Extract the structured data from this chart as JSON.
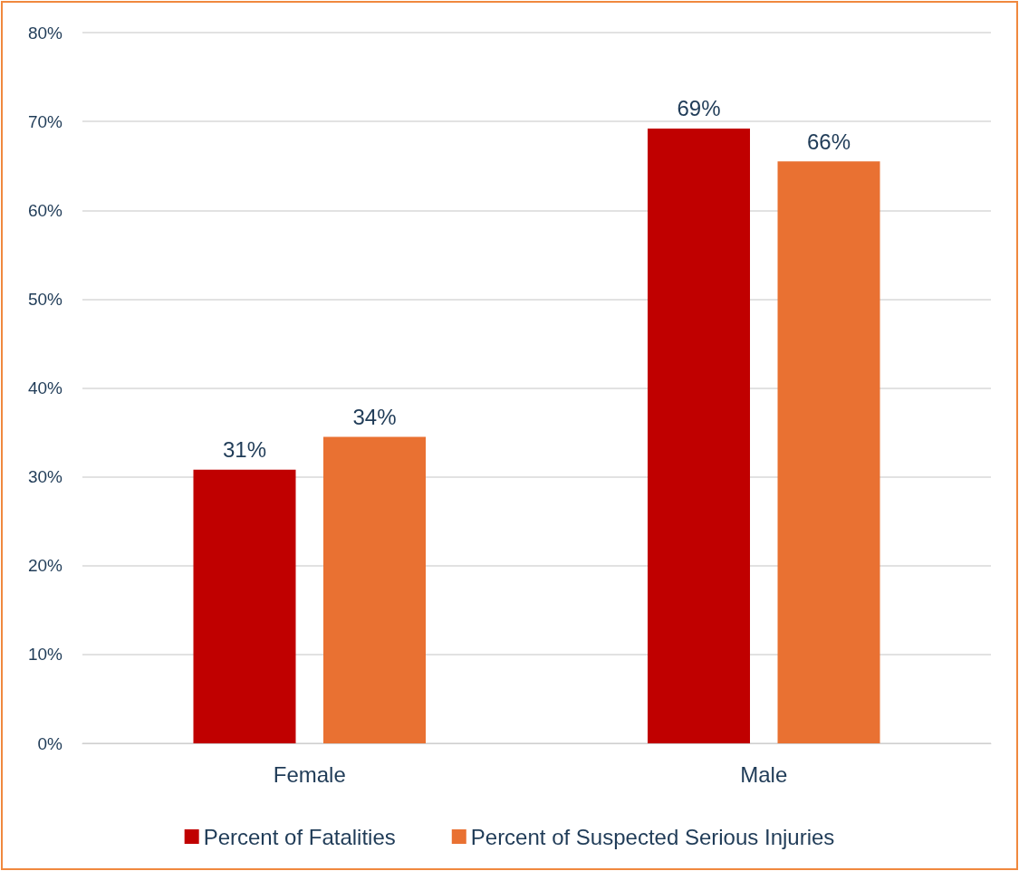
{
  "chart_data": {
    "type": "bar",
    "categories": [
      "Female",
      "Male"
    ],
    "series": [
      {
        "name": "Percent of Fatalities",
        "color": "#c00000",
        "values": [
          30.8,
          69.2
        ],
        "value_labels": [
          "31%",
          "69%"
        ]
      },
      {
        "name": "Percent of Suspected Serious Injuries",
        "color": "#e97132",
        "values": [
          34.5,
          65.5
        ],
        "value_labels": [
          "34%",
          "66%"
        ]
      }
    ],
    "ylim": [
      0,
      80
    ],
    "yticks": [
      {
        "value": 0,
        "label": "0%"
      },
      {
        "value": 10,
        "label": "10%"
      },
      {
        "value": 20,
        "label": "20%"
      },
      {
        "value": 30,
        "label": "30%"
      },
      {
        "value": 40,
        "label": "40%"
      },
      {
        "value": 50,
        "label": "50%"
      },
      {
        "value": 60,
        "label": "60%"
      },
      {
        "value": 70,
        "label": "70%"
      },
      {
        "value": 80,
        "label": "80%"
      }
    ],
    "grid": "y",
    "legend": "bottom"
  }
}
